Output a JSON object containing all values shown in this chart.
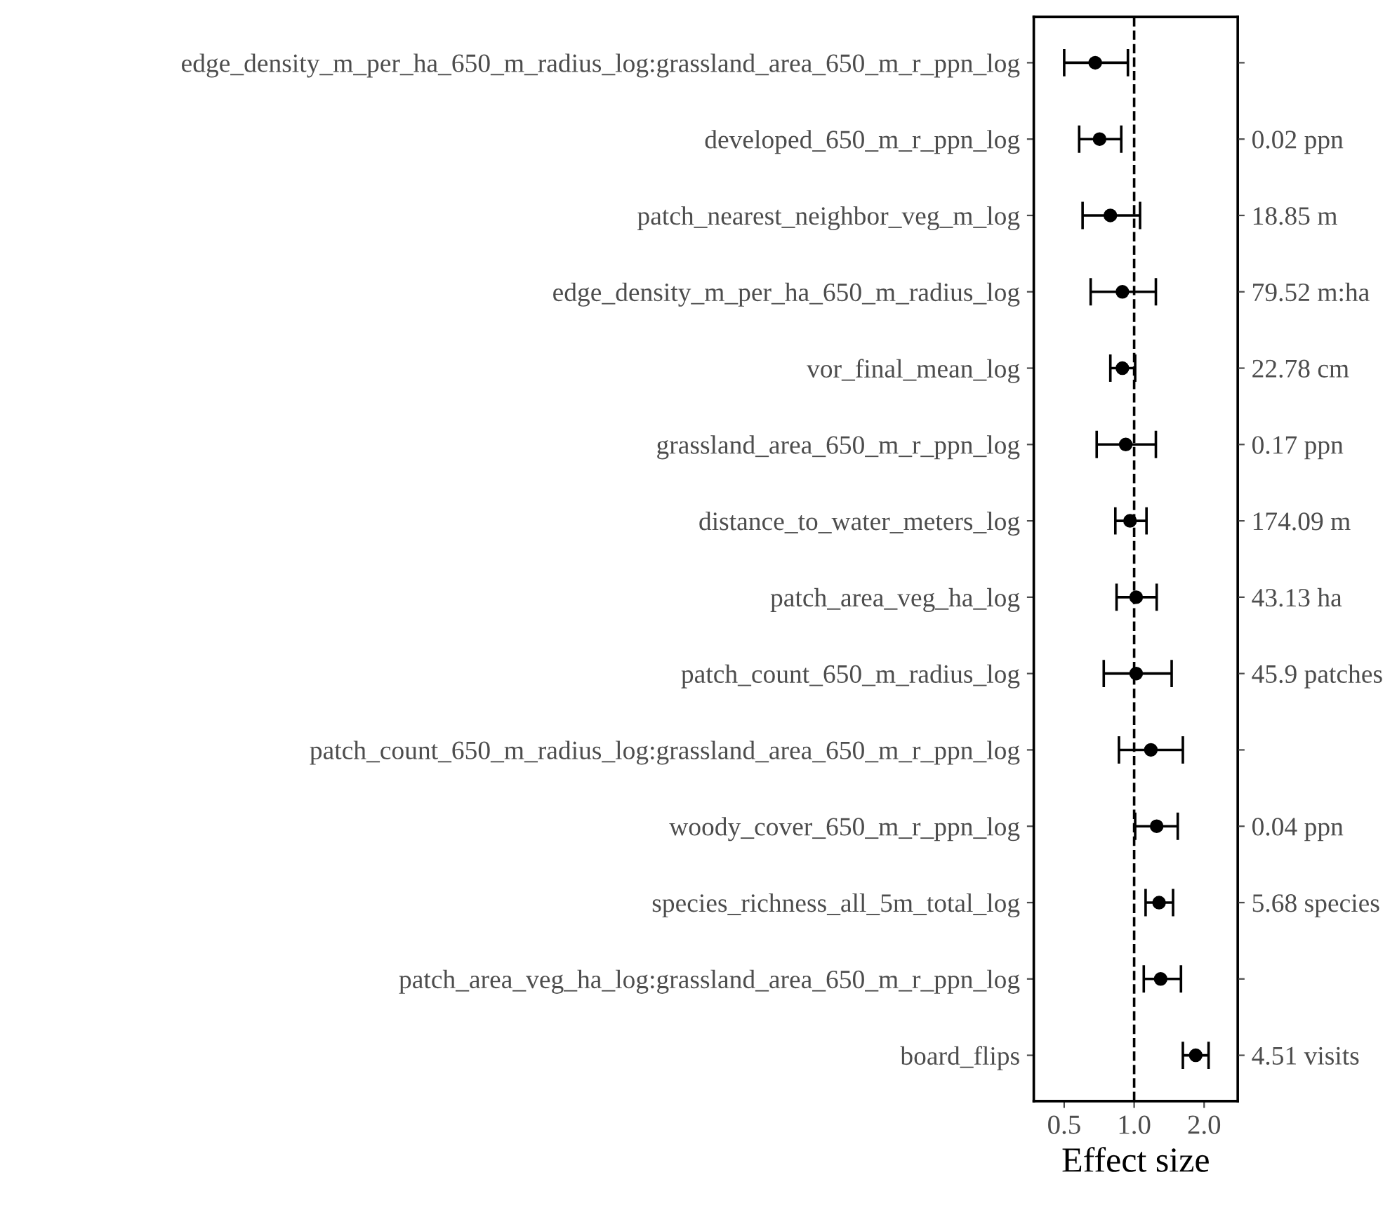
{
  "chart_data": {
    "type": "scatter",
    "orientation": "horizontal",
    "xlabel": "Effect size",
    "log": "x",
    "marker": "circle",
    "grid": false,
    "categories": [
      "edge_density_m_per_ha_650_m_radius_log:grassland_area_650_m_r_ppn_log",
      "developed_650_m_r_ppn_log",
      "patch_nearest_neighbor_veg_m_log",
      "edge_density_m_per_ha_650_m_radius_log",
      "vor_final_mean_log",
      "grassland_area_650_m_r_ppn_log",
      "distance_to_water_meters_log",
      "patch_area_veg_ha_log",
      "patch_count_650_m_radius_log",
      "patch_count_650_m_radius_log:grassland_area_650_m_r_ppn_log",
      "woody_cover_650_m_r_ppn_log",
      "species_richness_all_5m_total_log",
      "patch_area_veg_ha_log:grassland_area_650_m_r_ppn_log",
      "board_flips"
    ],
    "y2_categories": [
      null,
      "0.02 ppn",
      "18.85 m",
      "79.52 m:ha",
      "22.78 cm",
      "0.17 ppn",
      "174.09 m",
      "43.13 ha",
      "45.9 patches",
      null,
      "0.04 ppn",
      "5.68 species",
      null,
      "4.51 visits"
    ],
    "series": [
      {
        "color": "#000000",
        "values": [
          0.68,
          0.71,
          0.79,
          0.89,
          0.89,
          0.92,
          0.96,
          1.02,
          1.02,
          1.18,
          1.25,
          1.28,
          1.3,
          1.84
        ],
        "errors": [
          [
            0.5,
            0.94
          ],
          [
            0.58,
            0.88
          ],
          [
            0.6,
            1.06
          ],
          [
            0.65,
            1.24
          ],
          [
            0.79,
            1.01
          ],
          [
            0.69,
            1.24
          ],
          [
            0.83,
            1.13
          ],
          [
            0.84,
            1.25
          ],
          [
            0.74,
            1.45
          ],
          [
            0.86,
            1.62
          ],
          [
            1.01,
            1.54
          ],
          [
            1.12,
            1.47
          ],
          [
            1.1,
            1.59
          ],
          [
            1.62,
            2.09
          ]
        ]
      }
    ],
    "xlim": [
      0.37,
      2.79
    ],
    "xticks": [
      0.5,
      {
        "value": 1,
        "label": "1.0"
      },
      {
        "value": 2,
        "label": "2.0"
      }
    ],
    "ref_lines": [
      {
        "axis": "x",
        "value": 1,
        "line_style": "dashed",
        "color": "#000000"
      }
    ]
  }
}
